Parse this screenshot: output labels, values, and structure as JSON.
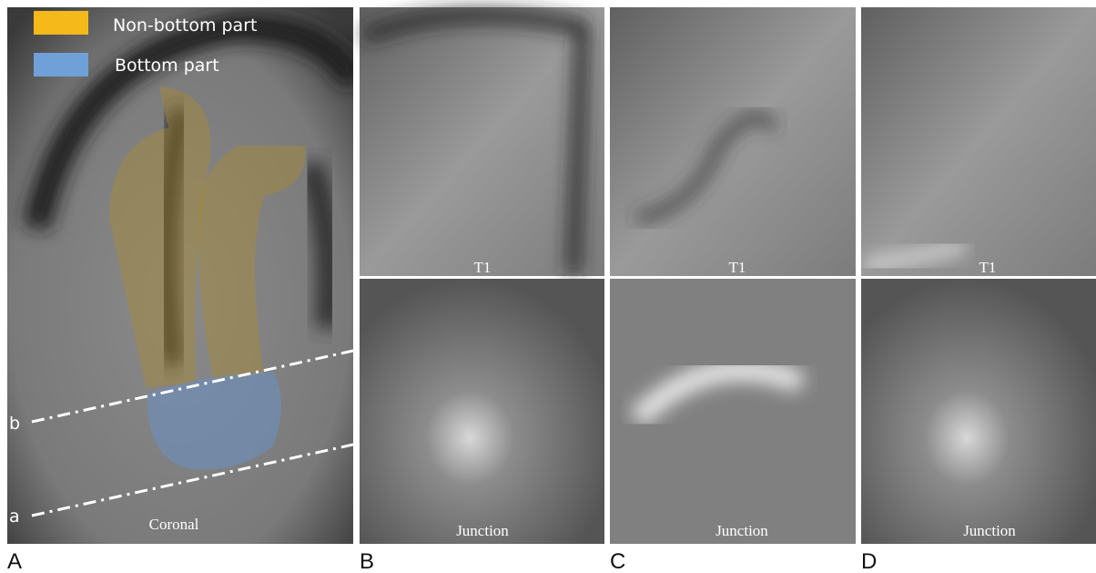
{
  "legend": {
    "items": [
      {
        "label": "Non-bottom part",
        "color": "#f6b91a"
      },
      {
        "label": "Bottom part",
        "color": "#6fa0d8"
      }
    ]
  },
  "panels": [
    {
      "letter": "A",
      "caption": "Coronal",
      "lines": [
        "b",
        "a"
      ]
    },
    {
      "letter": "B",
      "top_caption": "T1",
      "bottom_caption": "Junction"
    },
    {
      "letter": "C",
      "top_caption": "T1",
      "bottom_caption": "Junction"
    },
    {
      "letter": "D",
      "top_caption": "T1",
      "bottom_caption": "Junction"
    }
  ]
}
